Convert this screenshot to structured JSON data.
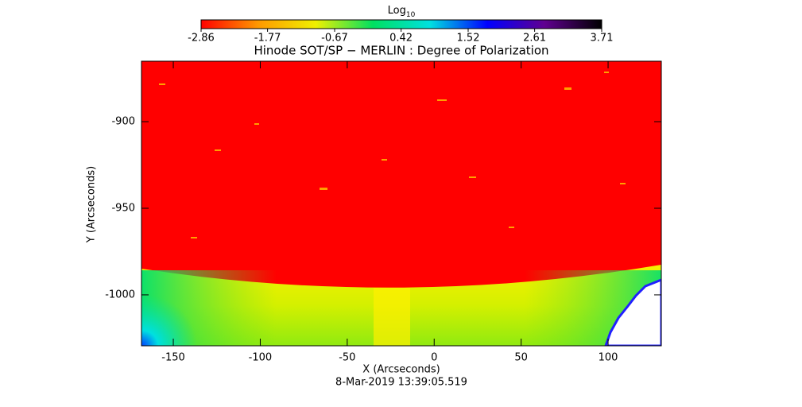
{
  "chart_data": {
    "type": "image",
    "title": "Hinode SOT/SP − MERLIN : Degree of Polarization",
    "x_label": "X (Arcseconds)",
    "y_label": "Y (Arcseconds)",
    "footer": "8-Mar-2019 13:39:05.519",
    "colorbar_label": "Log",
    "colorbar_label_sub": "10",
    "colorbar_lim": [
      -2.86,
      3.71
    ],
    "colorbar_ticks": [
      -2.86,
      -1.77,
      -0.67,
      0.42,
      1.52,
      2.61,
      3.71
    ],
    "colormap": [
      "#ff0000",
      "#ff9900",
      "#f0f000",
      "#00e060",
      "#00e0e0",
      "#0000ff",
      "#600090",
      "#000000"
    ],
    "xlim": [
      -168.3,
      130.6
    ],
    "xticks": [
      -150,
      -100,
      -50,
      0,
      50,
      100
    ],
    "ylim": [
      -1029.4,
      -865.1
    ],
    "yticks": [
      -1000,
      -950,
      -900
    ]
  }
}
